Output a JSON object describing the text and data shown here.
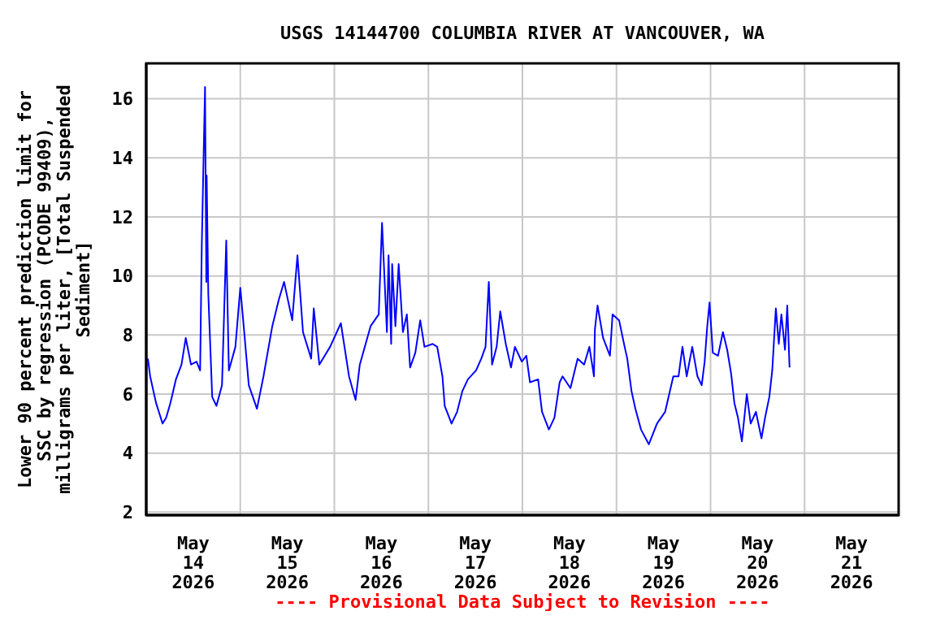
{
  "chart_data": {
    "type": "line",
    "title": "USGS 14144700 COLUMBIA RIVER AT VANCOUVER, WA",
    "ylabel": "Lower 90 percent prediction limit for\nSSC by regression (PCODE 99409),\nmilligrams per liter, [Total Suspended\nSediment]",
    "annotations": [
      "---- Provisional Data Subject to Revision ----"
    ],
    "xlim": [
      "2026-05-14",
      "2026-05-22"
    ],
    "xticks": [
      {
        "value": "2026-05-14",
        "label": null
      },
      {
        "value": "2026-05-14T12:00",
        "label": "May\n14\n2026"
      },
      {
        "value": "2026-05-15",
        "label": null
      },
      {
        "value": "2026-05-15T12:00",
        "label": "May\n15\n2026"
      },
      {
        "value": "2026-05-16",
        "label": null
      },
      {
        "value": "2026-05-16T12:00",
        "label": "May\n16\n2026"
      },
      {
        "value": "2026-05-17",
        "label": null
      },
      {
        "value": "2026-05-17T12:00",
        "label": "May\n17\n2026"
      },
      {
        "value": "2026-05-18",
        "label": null
      },
      {
        "value": "2026-05-18T12:00",
        "label": "May\n18\n2026"
      },
      {
        "value": "2026-05-19",
        "label": null
      },
      {
        "value": "2026-05-19T12:00",
        "label": "May\n19\n2026"
      },
      {
        "value": "2026-05-20",
        "label": null
      },
      {
        "value": "2026-05-20T12:00",
        "label": "May\n20\n2026"
      },
      {
        "value": "2026-05-21",
        "label": null
      },
      {
        "value": "2026-05-21T12:00",
        "label": "May\n21\n2026"
      },
      {
        "value": "2026-05-22",
        "label": null
      }
    ],
    "ylim": [
      1.9,
      17.2
    ],
    "yticks": [
      2,
      4,
      6,
      8,
      10,
      12,
      14,
      16
    ],
    "grid": true,
    "x": [
      "2026-05-14T00:25",
      "2026-05-14T01:00",
      "2026-05-14T02:30",
      "2026-05-14T04:10",
      "2026-05-14T05:05",
      "2026-05-14T06:10",
      "2026-05-14T07:35",
      "2026-05-14T09:00",
      "2026-05-14T10:05",
      "2026-05-14T11:25",
      "2026-05-14T12:50",
      "2026-05-14T13:45",
      "2026-05-14T14:10",
      "2026-05-14T15:00",
      "2026-05-14T15:20",
      "2026-05-14T15:25",
      "2026-05-14T15:50",
      "2026-05-14T16:50",
      "2026-05-14T17:55",
      "2026-05-14T19:20",
      "2026-05-14T20:25",
      "2026-05-14T21:05",
      "2026-05-14T22:45",
      "2026-05-15T00:00",
      "2026-05-15T01:00",
      "2026-05-15T02:10",
      "2026-05-15T04:15",
      "2026-05-15T05:55",
      "2026-05-15T08:10",
      "2026-05-15T09:50",
      "2026-05-15T11:10",
      "2026-05-15T13:15",
      "2026-05-15T14:35",
      "2026-05-15T16:00",
      "2026-05-15T18:05",
      "2026-05-15T18:45",
      "2026-05-15T20:10",
      "2026-05-15T22:55",
      "2026-05-16T01:40",
      "2026-05-16T03:45",
      "2026-05-16T05:25",
      "2026-05-16T06:30",
      "2026-05-16T09:15",
      "2026-05-16T11:20",
      "2026-05-16T12:10",
      "2026-05-16T13:25",
      "2026-05-16T13:50",
      "2026-05-16T14:30",
      "2026-05-16T14:45",
      "2026-05-16T15:35",
      "2026-05-16T16:25",
      "2026-05-16T17:30",
      "2026-05-16T18:30",
      "2026-05-16T19:20",
      "2026-05-16T20:40",
      "2026-05-16T21:55",
      "2026-05-16T23:00",
      "2026-05-17T01:05",
      "2026-05-17T02:15",
      "2026-05-17T03:35",
      "2026-05-17T04:10",
      "2026-05-17T05:55",
      "2026-05-17T07:20",
      "2026-05-17T08:40",
      "2026-05-17T10:05",
      "2026-05-17T12:10",
      "2026-05-17T13:30",
      "2026-05-17T14:35",
      "2026-05-17T15:25",
      "2026-05-17T16:15",
      "2026-05-17T17:25",
      "2026-05-17T18:20",
      "2026-05-17T19:45",
      "2026-05-17T21:05",
      "2026-05-17T22:05",
      "2026-05-17T23:50",
      "2026-05-18T01:00",
      "2026-05-18T01:55",
      "2026-05-18T04:00",
      "2026-05-18T05:00",
      "2026-05-18T06:45",
      "2026-05-18T08:10",
      "2026-05-18T09:30",
      "2026-05-18T10:15",
      "2026-05-18T12:15",
      "2026-05-18T14:05",
      "2026-05-18T15:45",
      "2026-05-18T17:05",
      "2026-05-18T18:15",
      "2026-05-18T18:30",
      "2026-05-18T19:10",
      "2026-05-18T20:35",
      "2026-05-18T22:20",
      "2026-05-18T23:00",
      "2026-05-19T00:40",
      "2026-05-19T02:05",
      "2026-05-19T02:45",
      "2026-05-19T03:50",
      "2026-05-19T04:50",
      "2026-05-19T06:15",
      "2026-05-19T08:15",
      "2026-05-19T10:20",
      "2026-05-19T12:25",
      "2026-05-19T14:30",
      "2026-05-19T15:50",
      "2026-05-19T16:50",
      "2026-05-19T17:55",
      "2026-05-19T19:20",
      "2026-05-19T20:40",
      "2026-05-19T21:45",
      "2026-05-19T22:30",
      "2026-05-19T23:10",
      "2026-05-19T23:45",
      "2026-05-20T00:35",
      "2026-05-20T01:55",
      "2026-05-20T03:10",
      "2026-05-20T04:15",
      "2026-05-20T05:15",
      "2026-05-20T06:05",
      "2026-05-20T07:00",
      "2026-05-20T08:00",
      "2026-05-20T09:15",
      "2026-05-20T10:15",
      "2026-05-20T11:35",
      "2026-05-20T13:00",
      "2026-05-20T13:55",
      "2026-05-20T15:00",
      "2026-05-20T15:45",
      "2026-05-20T16:40",
      "2026-05-20T17:25",
      "2026-05-20T18:05",
      "2026-05-20T19:00",
      "2026-05-20T19:35",
      "2026-05-20T20:10"
    ],
    "series": [
      {
        "color": "#0000ff",
        "values": [
          7.2,
          6.6,
          5.7,
          5.0,
          5.2,
          5.7,
          6.5,
          7.0,
          7.9,
          7.0,
          7.1,
          6.8,
          11.0,
          16.4,
          9.8,
          13.4,
          9.4,
          5.9,
          5.6,
          6.3,
          11.2,
          6.8,
          7.6,
          9.6,
          8.1,
          6.3,
          5.5,
          6.6,
          8.3,
          9.2,
          9.8,
          8.5,
          10.7,
          8.1,
          7.2,
          8.9,
          7.0,
          7.6,
          8.4,
          6.6,
          5.8,
          7.0,
          8.3,
          8.7,
          11.8,
          8.1,
          10.7,
          7.7,
          10.4,
          8.3,
          10.4,
          8.1,
          8.7,
          6.9,
          7.4,
          8.5,
          7.6,
          7.7,
          7.6,
          6.6,
          5.6,
          5.0,
          5.4,
          6.1,
          6.5,
          6.8,
          7.2,
          7.6,
          9.8,
          7.0,
          7.6,
          8.8,
          7.7,
          6.9,
          7.6,
          7.1,
          7.3,
          6.4,
          6.5,
          5.4,
          4.8,
          5.2,
          6.4,
          6.6,
          6.2,
          7.2,
          7.0,
          7.6,
          6.6,
          8.2,
          9.0,
          7.9,
          7.3,
          8.7,
          8.5,
          7.6,
          7.2,
          6.1,
          5.5,
          4.8,
          4.3,
          5.0,
          5.4,
          6.6,
          6.6,
          7.6,
          6.6,
          7.6,
          6.6,
          6.3,
          7.1,
          8.3,
          9.1,
          7.4,
          7.3,
          8.1,
          7.5,
          6.7,
          5.7,
          5.2,
          4.4,
          6.0,
          5.0,
          5.4,
          4.5,
          5.2,
          5.9,
          6.8,
          8.9,
          7.7,
          8.7,
          7.5,
          9.0,
          6.9
        ]
      }
    ]
  }
}
